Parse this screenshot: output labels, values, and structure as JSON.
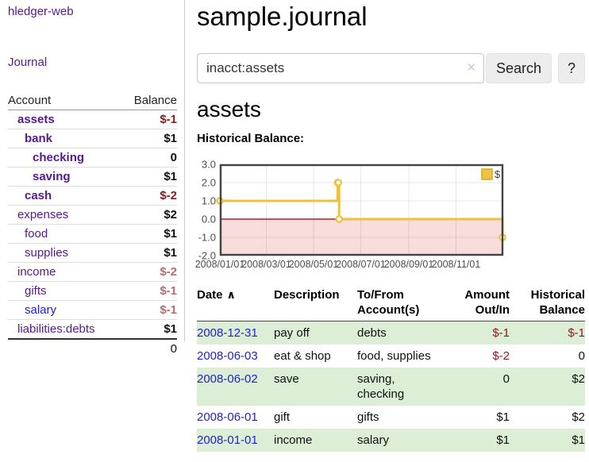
{
  "app": {
    "brand": "hledger-web",
    "nav_journal": "Journal"
  },
  "sidebar": {
    "header": {
      "account": "Account",
      "balance": "Balance"
    },
    "rows": [
      {
        "name": "assets",
        "depth": 1,
        "bold": true,
        "balance": "$-1",
        "neg": "strong"
      },
      {
        "name": "bank",
        "depth": 2,
        "bold": true,
        "balance": "$1"
      },
      {
        "name": "checking",
        "depth": 3,
        "bold": true,
        "balance": "0"
      },
      {
        "name": "saving",
        "depth": 3,
        "bold": true,
        "balance": "$1"
      },
      {
        "name": "cash",
        "depth": 2,
        "bold": true,
        "balance": "$-2",
        "neg": "strong"
      },
      {
        "name": "expenses",
        "depth": 1,
        "bold": false,
        "balance": "$2"
      },
      {
        "name": "food",
        "depth": 2,
        "bold": false,
        "balance": "$1"
      },
      {
        "name": "supplies",
        "depth": 2,
        "bold": false,
        "balance": "$1"
      },
      {
        "name": "income",
        "depth": 1,
        "bold": false,
        "balance": "$-2",
        "neg": "soft"
      },
      {
        "name": "gifts",
        "depth": 2,
        "bold": false,
        "balance": "$-1",
        "neg": "soft"
      },
      {
        "name": "salary",
        "depth": 2,
        "bold": false,
        "balance": "$-1",
        "neg": "soft",
        "link_color": "blue"
      },
      {
        "name": "liabilities:debts",
        "depth": 1,
        "bold": false,
        "balance": "$1"
      }
    ],
    "total": "0"
  },
  "header": {
    "title": "sample.journal"
  },
  "search": {
    "value": "inacct:assets",
    "clear_icon": "✕",
    "button_label": "Search",
    "help_label": "?"
  },
  "account_page": {
    "heading": "assets",
    "chart_label": "Historical Balance:"
  },
  "chart_data": {
    "type": "line",
    "step": true,
    "x": [
      "2008-01-01",
      "2008-06-01",
      "2008-06-02",
      "2008-06-03",
      "2008-12-31"
    ],
    "series": [
      {
        "name": "$",
        "values": [
          1,
          2,
          2,
          0,
          -1
        ],
        "color": "#edc240"
      }
    ],
    "x_ticks": [
      "2008/01/01",
      "2008/03/01",
      "2008/05/01",
      "2008/07/01",
      "2008/09/01",
      "2008/11/01"
    ],
    "y_ticks": [
      "3.0",
      "2.0",
      "1.0",
      "0.0",
      "-1.0",
      "-2.0"
    ],
    "ylim": [
      -2,
      3
    ],
    "xlim": [
      "2008-01-01",
      "2009-01-01"
    ],
    "grid": true,
    "legend": {
      "label": "$",
      "position": "top-right"
    },
    "negative_region_fill": "#f9dcdc",
    "zero_line_color": "#8b0000",
    "border_color": "#444444",
    "marker_fill": "#ffffff"
  },
  "register": {
    "columns": [
      "Date",
      "Description",
      "To/From\nAccount(s)",
      "Amount\nOut/In",
      "Historical\nBalance"
    ],
    "sort_icon": "∧",
    "rows": [
      {
        "date": "2008-12-31",
        "description": "pay off",
        "accounts": "debts",
        "amount": "$-1",
        "amount_neg": true,
        "balance": "$-1",
        "balance_neg": true,
        "shaded": true
      },
      {
        "date": "2008-06-03",
        "description": "eat & shop",
        "accounts": "food, supplies",
        "amount": "$-2",
        "amount_neg": true,
        "balance": "0",
        "balance_neg": false,
        "shaded": false
      },
      {
        "date": "2008-06-02",
        "description": "save",
        "accounts": "saving,\nchecking",
        "amount": "0",
        "amount_neg": false,
        "balance": "$2",
        "balance_neg": false,
        "shaded": true
      },
      {
        "date": "2008-06-01",
        "description": "gift",
        "accounts": "gifts",
        "amount": "$1",
        "amount_neg": false,
        "balance": "$2",
        "balance_neg": false,
        "shaded": false
      },
      {
        "date": "2008-01-01",
        "description": "income",
        "accounts": "salary",
        "amount": "$1",
        "amount_neg": false,
        "balance": "$1",
        "balance_neg": false,
        "shaded": true
      }
    ]
  },
  "colors": {
    "link_purple": "#551a8b",
    "link_blue": "#2222cc",
    "negative_strong": "#8f1a1a",
    "negative_soft": "#bf6a6a",
    "row_green": "#ddeed6",
    "chart_line": "#edc240"
  }
}
